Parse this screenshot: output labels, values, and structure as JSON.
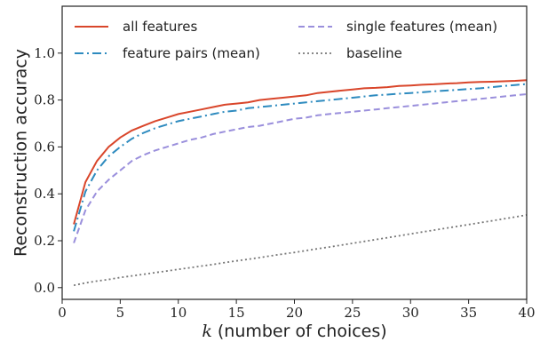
{
  "chart_data": {
    "type": "line",
    "xlabel_var": "k",
    "xlabel_rest": " (number of choices)",
    "ylabel": "Reconstruction accuracy",
    "xlim": [
      0,
      40
    ],
    "ylim": [
      -0.05,
      1.2
    ],
    "xticks": [
      0,
      5,
      10,
      15,
      20,
      25,
      30,
      35,
      40
    ],
    "yticks": [
      0.0,
      0.2,
      0.4,
      0.6,
      0.8,
      1.0
    ],
    "ytick_labels": [
      "0.0",
      "0.2",
      "0.4",
      "0.6",
      "0.8",
      "1.0"
    ],
    "grid": false,
    "legend_position": "top",
    "x": [
      1,
      2,
      3,
      4,
      5,
      6,
      7,
      8,
      9,
      10,
      11,
      12,
      13,
      14,
      15,
      16,
      17,
      18,
      19,
      20,
      21,
      22,
      23,
      24,
      25,
      26,
      27,
      28,
      29,
      30,
      31,
      32,
      33,
      34,
      35,
      36,
      37,
      38,
      39,
      40
    ],
    "series": [
      {
        "name": "all features",
        "color": "#d9462b",
        "dash": "solid",
        "values": [
          0.27,
          0.45,
          0.54,
          0.6,
          0.64,
          0.67,
          0.69,
          0.71,
          0.725,
          0.74,
          0.75,
          0.76,
          0.77,
          0.78,
          0.785,
          0.79,
          0.8,
          0.805,
          0.81,
          0.815,
          0.82,
          0.83,
          0.835,
          0.84,
          0.845,
          0.85,
          0.852,
          0.855,
          0.86,
          0.862,
          0.865,
          0.867,
          0.87,
          0.872,
          0.875,
          0.877,
          0.878,
          0.88,
          0.882,
          0.885
        ]
      },
      {
        "name": "feature pairs (mean)",
        "color": "#2e8bbf",
        "dash": "dashdot",
        "values": [
          0.24,
          0.41,
          0.5,
          0.56,
          0.6,
          0.635,
          0.66,
          0.68,
          0.695,
          0.71,
          0.72,
          0.73,
          0.74,
          0.75,
          0.755,
          0.765,
          0.77,
          0.775,
          0.78,
          0.785,
          0.79,
          0.795,
          0.8,
          0.805,
          0.81,
          0.815,
          0.82,
          0.823,
          0.827,
          0.83,
          0.833,
          0.837,
          0.84,
          0.843,
          0.847,
          0.85,
          0.855,
          0.86,
          0.864,
          0.868
        ]
      },
      {
        "name": "single features (mean)",
        "color": "#9a8fdc",
        "dash": "dashed",
        "values": [
          0.19,
          0.33,
          0.41,
          0.46,
          0.5,
          0.54,
          0.565,
          0.585,
          0.6,
          0.615,
          0.63,
          0.64,
          0.655,
          0.665,
          0.675,
          0.685,
          0.69,
          0.7,
          0.71,
          0.72,
          0.725,
          0.735,
          0.74,
          0.745,
          0.75,
          0.755,
          0.76,
          0.765,
          0.77,
          0.775,
          0.78,
          0.785,
          0.79,
          0.795,
          0.8,
          0.805,
          0.81,
          0.815,
          0.82,
          0.825
        ]
      },
      {
        "name": "baseline",
        "color": "#777777",
        "dash": "dotted",
        "values": [
          0.01,
          0.02,
          0.028,
          0.035,
          0.043,
          0.05,
          0.057,
          0.064,
          0.071,
          0.078,
          0.085,
          0.092,
          0.099,
          0.107,
          0.114,
          0.121,
          0.128,
          0.136,
          0.143,
          0.15,
          0.158,
          0.166,
          0.173,
          0.181,
          0.189,
          0.197,
          0.205,
          0.213,
          0.221,
          0.229,
          0.237,
          0.245,
          0.253,
          0.261,
          0.269,
          0.277,
          0.285,
          0.293,
          0.301,
          0.31
        ]
      }
    ]
  }
}
